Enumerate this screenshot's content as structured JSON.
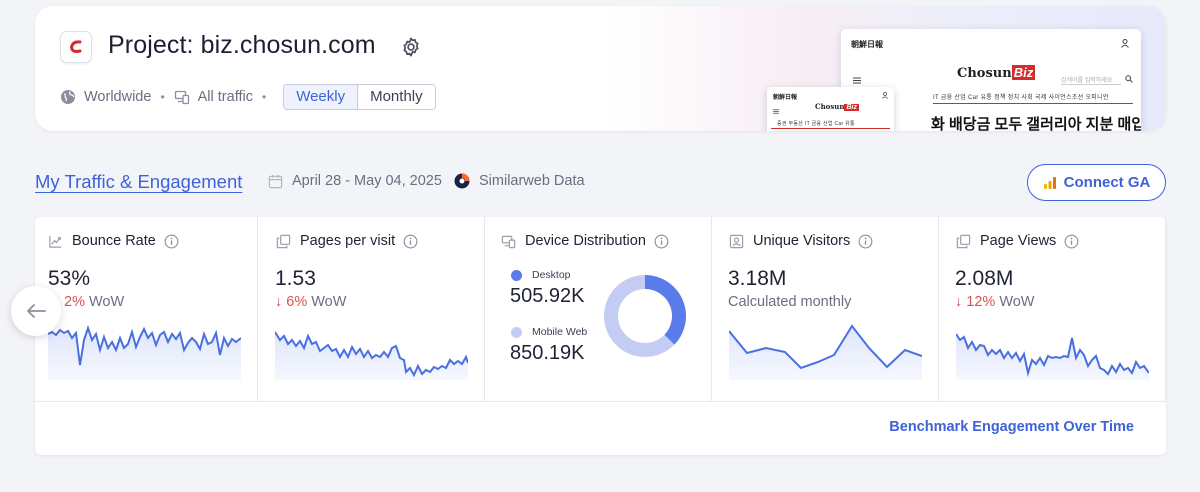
{
  "header": {
    "project_label": "Project: biz.chosun.com",
    "region": "Worldwide",
    "traffic": "All traffic",
    "granularity_options": [
      "Weekly",
      "Monthly"
    ],
    "granularity_selected": "Weekly",
    "preview_big": {
      "masthead": "朝鮮日報",
      "brand_main": "Chosun",
      "brand_accent": "Biz",
      "search_placeholder": "검색어를 입력하세요",
      "nav": "IT  금융  산업  Car  유통  정책  정치  사회  국제  사이언스조선  오피니언",
      "headline": "화 배당금 모두 갤러리아 지분 매입에…"
    },
    "preview_small": {
      "masthead": "朝鮮日報",
      "brand_main": "Chosun",
      "brand_accent": "Biz",
      "nav": "증권  부동산  IT  금융  산업  Car  유통"
    }
  },
  "section": {
    "title": "My Traffic & Engagement",
    "date_range": "April 28 - May 04, 2025",
    "data_source": "Similarweb Data",
    "connect_label": "Connect GA"
  },
  "metrics": {
    "bounce_rate": {
      "label": "Bounce Rate",
      "value": "53%",
      "wow_pct": "2%",
      "wow_suffix": "WoW"
    },
    "pages_per_visit": {
      "label": "Pages per visit",
      "value": "1.53",
      "wow_pct": "6%",
      "wow_suffix": "WoW"
    },
    "device_distribution": {
      "label": "Device Distribution",
      "desktop_label": "Desktop",
      "desktop_value": "505.92K",
      "mobile_label": "Mobile Web",
      "mobile_value": "850.19K",
      "desktop_color": "#5a7bea",
      "mobile_color": "#c3cdf4"
    },
    "unique_visitors": {
      "label": "Unique Visitors",
      "value": "3.18M",
      "note": "Calculated monthly"
    },
    "page_views": {
      "label": "Page Views",
      "value": "2.08M",
      "wow_pct": "12%",
      "wow_suffix": "WoW"
    }
  },
  "benchmark_label": "Benchmark Engagement Over Time",
  "colors": {
    "accent": "#3e63d6",
    "negative": "#d9534f",
    "spark_line": "#4a6fe0"
  },
  "chart_data": [
    {
      "type": "pie",
      "labels": [
        "Desktop",
        "Mobile Web"
      ],
      "values": [
        505.92,
        850.19
      ]
    }
  ]
}
